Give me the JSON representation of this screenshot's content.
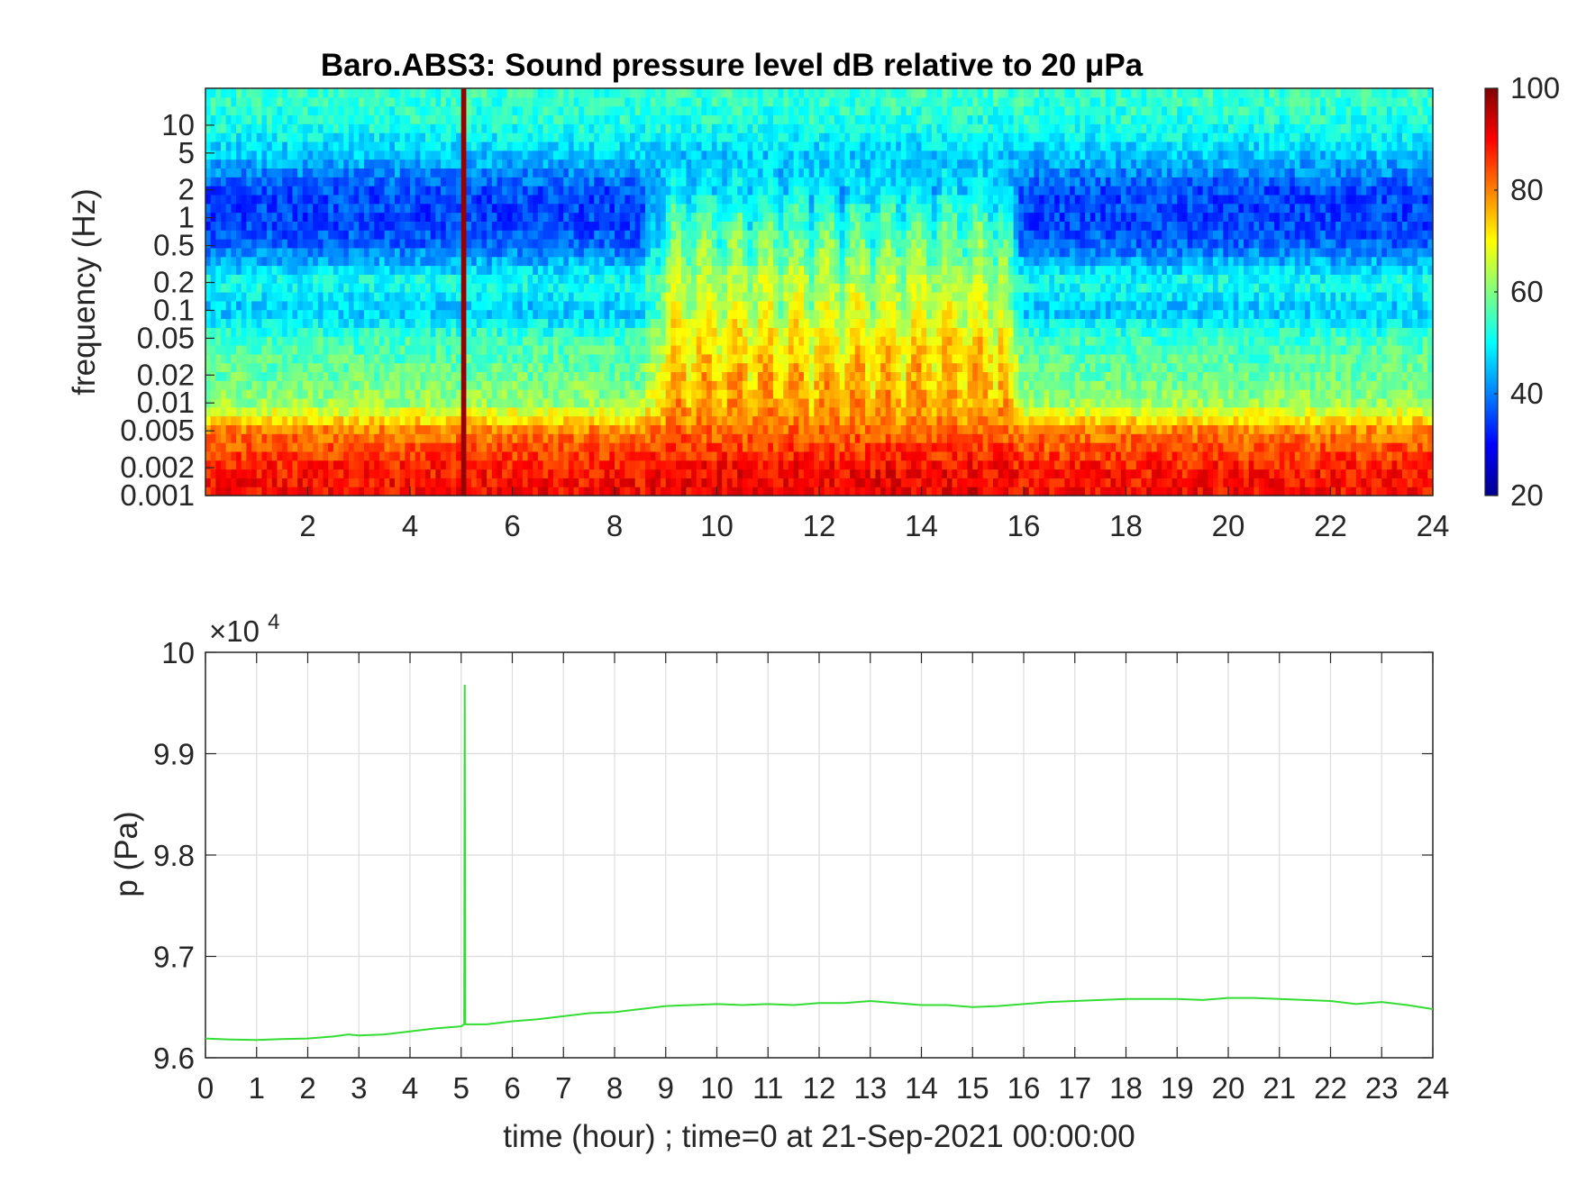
{
  "chart_data": [
    {
      "type": "heatmap",
      "title": "Baro.ABS3: Sound pressure level dB relative to 20 μPa",
      "xlabel": "",
      "ylabel": "frequency (Hz)",
      "x_range": [
        0,
        24
      ],
      "x_ticks": [
        "2",
        "4",
        "6",
        "8",
        "10",
        "12",
        "14",
        "16",
        "18",
        "20",
        "22",
        "24"
      ],
      "y_scale": "log",
      "y_range": [
        0.001,
        25
      ],
      "y_ticks": [
        "0.001",
        "0.002",
        "0.005",
        "0.01",
        "0.02",
        "0.05",
        "0.1",
        "0.2",
        "0.5",
        "1",
        "2",
        "5",
        "10"
      ],
      "colormap": "jet",
      "colorbar": {
        "range": [
          20,
          100
        ],
        "ticks": [
          "20",
          "40",
          "60",
          "80",
          "100"
        ]
      },
      "level_profile": {
        "frequency_hz": [
          0.001,
          0.002,
          0.005,
          0.01,
          0.02,
          0.05,
          0.1,
          0.2,
          0.5,
          1,
          2,
          5,
          10,
          20
        ],
        "quiet_period_db": [
          90,
          88,
          80,
          62,
          58,
          55,
          45,
          52,
          38,
          35,
          36,
          46,
          52,
          54
        ],
        "active_period_db": [
          92,
          90,
          82,
          80,
          78,
          74,
          70,
          66,
          62,
          58,
          50,
          46,
          52,
          54
        ]
      },
      "active_hours": [
        8.5,
        16
      ],
      "event": {
        "time_hour": 5.07,
        "description_shown": "vertical streak"
      }
    },
    {
      "type": "line",
      "title": "",
      "xlabel": "time (hour) ; time=0 at 21-Sep-2021 00:00:00",
      "ylabel": "p (Pa)",
      "xlim": [
        0,
        24
      ],
      "ylim": [
        96000,
        100000
      ],
      "y_exponent_label": {
        "base": "×10",
        "exp": "4"
      },
      "x_ticks": [
        "0",
        "1",
        "2",
        "3",
        "4",
        "5",
        "6",
        "7",
        "8",
        "9",
        "10",
        "11",
        "12",
        "13",
        "14",
        "15",
        "16",
        "17",
        "18",
        "19",
        "20",
        "21",
        "22",
        "23",
        "24"
      ],
      "y_ticks": [
        "9.6",
        "9.7",
        "9.8",
        "9.9",
        "10"
      ],
      "y_tick_values": [
        96000,
        97000,
        98000,
        99000,
        100000
      ],
      "grid": true,
      "series": [
        {
          "color": "#33dd33",
          "x": [
            0,
            0.5,
            1,
            1.5,
            2,
            2.5,
            2.8,
            3,
            3.5,
            4,
            4.5,
            5,
            5.06,
            5.07,
            5.08,
            5.5,
            6,
            6.5,
            7,
            7.5,
            8,
            8.5,
            9,
            9.5,
            10,
            10.5,
            11,
            11.5,
            12,
            12.5,
            13,
            13.5,
            14,
            14.5,
            15,
            15.5,
            16,
            16.5,
            17,
            17.5,
            18,
            18.5,
            19,
            19.5,
            20,
            20.5,
            21,
            21.5,
            22,
            22.5,
            23,
            23.5,
            24
          ],
          "y": [
            96190,
            96180,
            96175,
            96185,
            96190,
            96210,
            96230,
            96220,
            96230,
            96260,
            96290,
            96310,
            96330,
            99680,
            96330,
            96330,
            96360,
            96380,
            96410,
            96440,
            96450,
            96480,
            96510,
            96520,
            96530,
            96520,
            96530,
            96520,
            96540,
            96540,
            96560,
            96540,
            96520,
            96520,
            96500,
            96510,
            96530,
            96550,
            96560,
            96570,
            96580,
            96580,
            96580,
            96570,
            96590,
            96590,
            96580,
            96570,
            96560,
            96530,
            96550,
            96520,
            96480
          ]
        }
      ]
    }
  ]
}
